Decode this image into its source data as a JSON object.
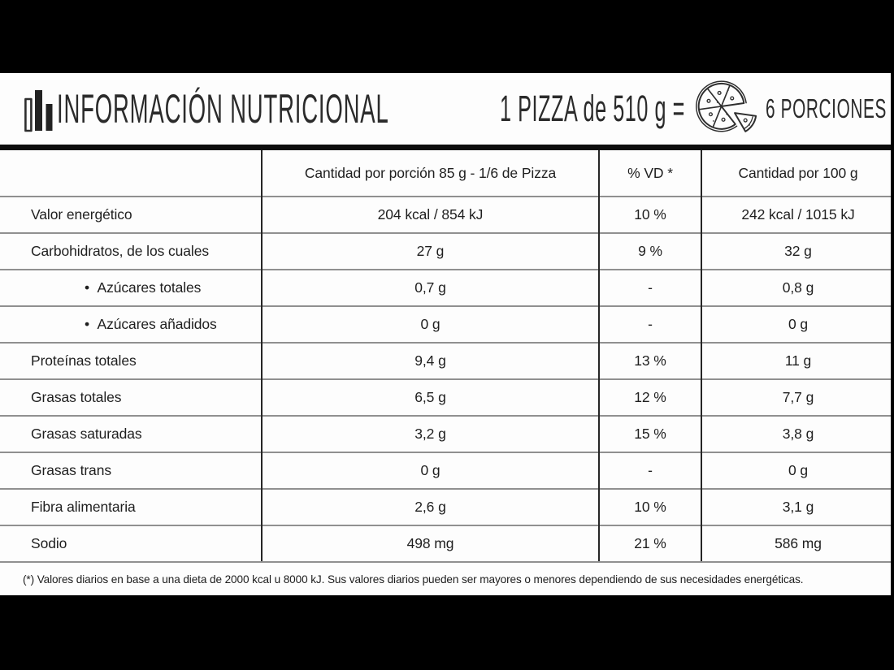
{
  "window": {
    "letterbox_color": "#000000",
    "background": "#fdfdfd"
  },
  "colors": {
    "text": "#1f1f1f",
    "row_line": "#909090",
    "column_line": "#262626",
    "divider_bar": "#0d0d0d"
  },
  "icons": {
    "bar_chart": "bar-chart-icon",
    "pizza": "pizza-slice-icon"
  },
  "header": {
    "title": "INFORMACIÓN NUTRICIONAL",
    "serving_equation": "1 PIZZA de 510 g =",
    "servings_label": "6 PORCIONES"
  },
  "table": {
    "bullet": "•",
    "columns": [
      "",
      "Cantidad por porción 85 g - 1/6 de Pizza",
      "% VD *",
      "Cantidad por 100 g"
    ],
    "rows": [
      {
        "label": "Valor energético",
        "indent": false,
        "per_serving": "204 kcal / 854 kJ",
        "vd": "10 %",
        "per_100": "242 kcal / 1015 kJ"
      },
      {
        "label": "Carbohidratos, de los cuales",
        "indent": false,
        "per_serving": "27 g",
        "vd": "9 %",
        "per_100": "32 g"
      },
      {
        "label": "Azúcares totales",
        "indent": true,
        "per_serving": "0,7 g",
        "vd": "-",
        "per_100": "0,8 g"
      },
      {
        "label": "Azúcares añadidos",
        "indent": true,
        "per_serving": "0 g",
        "vd": "-",
        "per_100": "0 g"
      },
      {
        "label": "Proteínas totales",
        "indent": false,
        "per_serving": "9,4 g",
        "vd": "13 %",
        "per_100": "11 g"
      },
      {
        "label": "Grasas totales",
        "indent": false,
        "per_serving": "6,5 g",
        "vd": "12 %",
        "per_100": "7,7 g"
      },
      {
        "label": "Grasas saturadas",
        "indent": false,
        "per_serving": "3,2 g",
        "vd": "15 %",
        "per_100": "3,8 g"
      },
      {
        "label": "Grasas trans",
        "indent": false,
        "per_serving": "0 g",
        "vd": "-",
        "per_100": "0 g"
      },
      {
        "label": "Fibra alimentaria",
        "indent": false,
        "per_serving": "2,6 g",
        "vd": "10 %",
        "per_100": "3,1 g"
      },
      {
        "label": "Sodio",
        "indent": false,
        "per_serving": "498 mg",
        "vd": "21 %",
        "per_100": "586 mg"
      }
    ]
  },
  "footnote": "(*) Valores diarios en base a una dieta de 2000 kcal u 8000 kJ. Sus valores diarios pueden ser mayores o menores dependiendo de sus necesidades energéticas."
}
